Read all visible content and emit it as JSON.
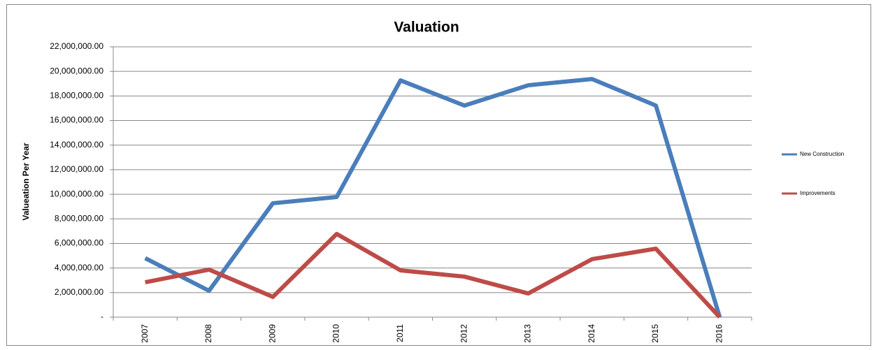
{
  "chart_data": {
    "type": "line",
    "title": "Valuation",
    "y_label": "Valueation Per Year",
    "categories": [
      "2007",
      "2008",
      "2009",
      "2010",
      "2011",
      "2012",
      "2013",
      "2014",
      "2015",
      "2016"
    ],
    "series": [
      {
        "name": "New Construction",
        "color": "#4a7ebb",
        "values": [
          4800000,
          2150000,
          9270000,
          9780000,
          19270000,
          17220000,
          18870000,
          19380000,
          17220000,
          0
        ]
      },
      {
        "name": "Improvements",
        "color": "#be4b48",
        "values": [
          2840000,
          3870000,
          1650000,
          6770000,
          3810000,
          3300000,
          1930000,
          4720000,
          5570000,
          0
        ]
      }
    ],
    "ylim": [
      0,
      22000000
    ],
    "yticks": [
      {
        "value": 0,
        "label": "-"
      },
      {
        "value": 2000000,
        "label": "2,000,000.00"
      },
      {
        "value": 4000000,
        "label": "4,000,000.00"
      },
      {
        "value": 6000000,
        "label": "6,000,000.00"
      },
      {
        "value": 8000000,
        "label": "8,000,000.00"
      },
      {
        "value": 10000000,
        "label": "10,000,000.00"
      },
      {
        "value": 12000000,
        "label": "12,000,000.00"
      },
      {
        "value": 14000000,
        "label": "14,000,000.00"
      },
      {
        "value": 16000000,
        "label": "16,000,000.00"
      },
      {
        "value": 18000000,
        "label": "18,000,000.00"
      },
      {
        "value": 20000000,
        "label": "20,000,000.00"
      },
      {
        "value": 22000000,
        "label": "22,000,000.00"
      }
    ],
    "grid": true,
    "legend": "right"
  }
}
